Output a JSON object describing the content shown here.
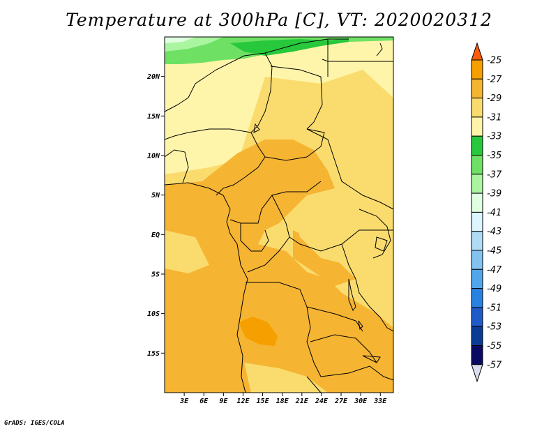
{
  "title": "Temperature at 300hPa [C], VT: 2020020312",
  "credit": "GrADS: IGES/COLA",
  "lon_ticks": [
    "3E",
    "6E",
    "9E",
    "12E",
    "15E",
    "18E",
    "21E",
    "24E",
    "27E",
    "30E",
    "33E"
  ],
  "lat_ticks": [
    "20N",
    "15N",
    "10N",
    "5N",
    "EQ",
    "5S",
    "10S",
    "15S"
  ],
  "colorbar": {
    "labels": [
      "-25",
      "-27",
      "-29",
      "-31",
      "-33",
      "-35",
      "-37",
      "-39",
      "-41",
      "-43",
      "-45",
      "-47",
      "-49",
      "-51",
      "-53",
      "-55",
      "-57"
    ],
    "colors": [
      "#ff5a0a",
      "#f5a000",
      "#f5b432",
      "#fadc6e",
      "#fff5aa",
      "#28c83c",
      "#6ee164",
      "#aaf5a0",
      "#e1ffe1",
      "#dcf5ff",
      "#afdcf5",
      "#82c3f0",
      "#50a5eb",
      "#2882e1",
      "#1e5ac8",
      "#0a3c96",
      "#0a0a64",
      "#dcdcf0"
    ]
  },
  "chart_data": {
    "type": "heatmap",
    "variable": "Temperature at 300hPa [C]",
    "valid_time": "2020020312",
    "lon_range": [
      0,
      35
    ],
    "lat_range": [
      -20,
      25
    ],
    "levels": [
      -57,
      -55,
      -53,
      -51,
      -49,
      -47,
      -45,
      -43,
      -41,
      -39,
      -37,
      -35,
      -33,
      -31,
      -29,
      -27,
      -25
    ]
  }
}
